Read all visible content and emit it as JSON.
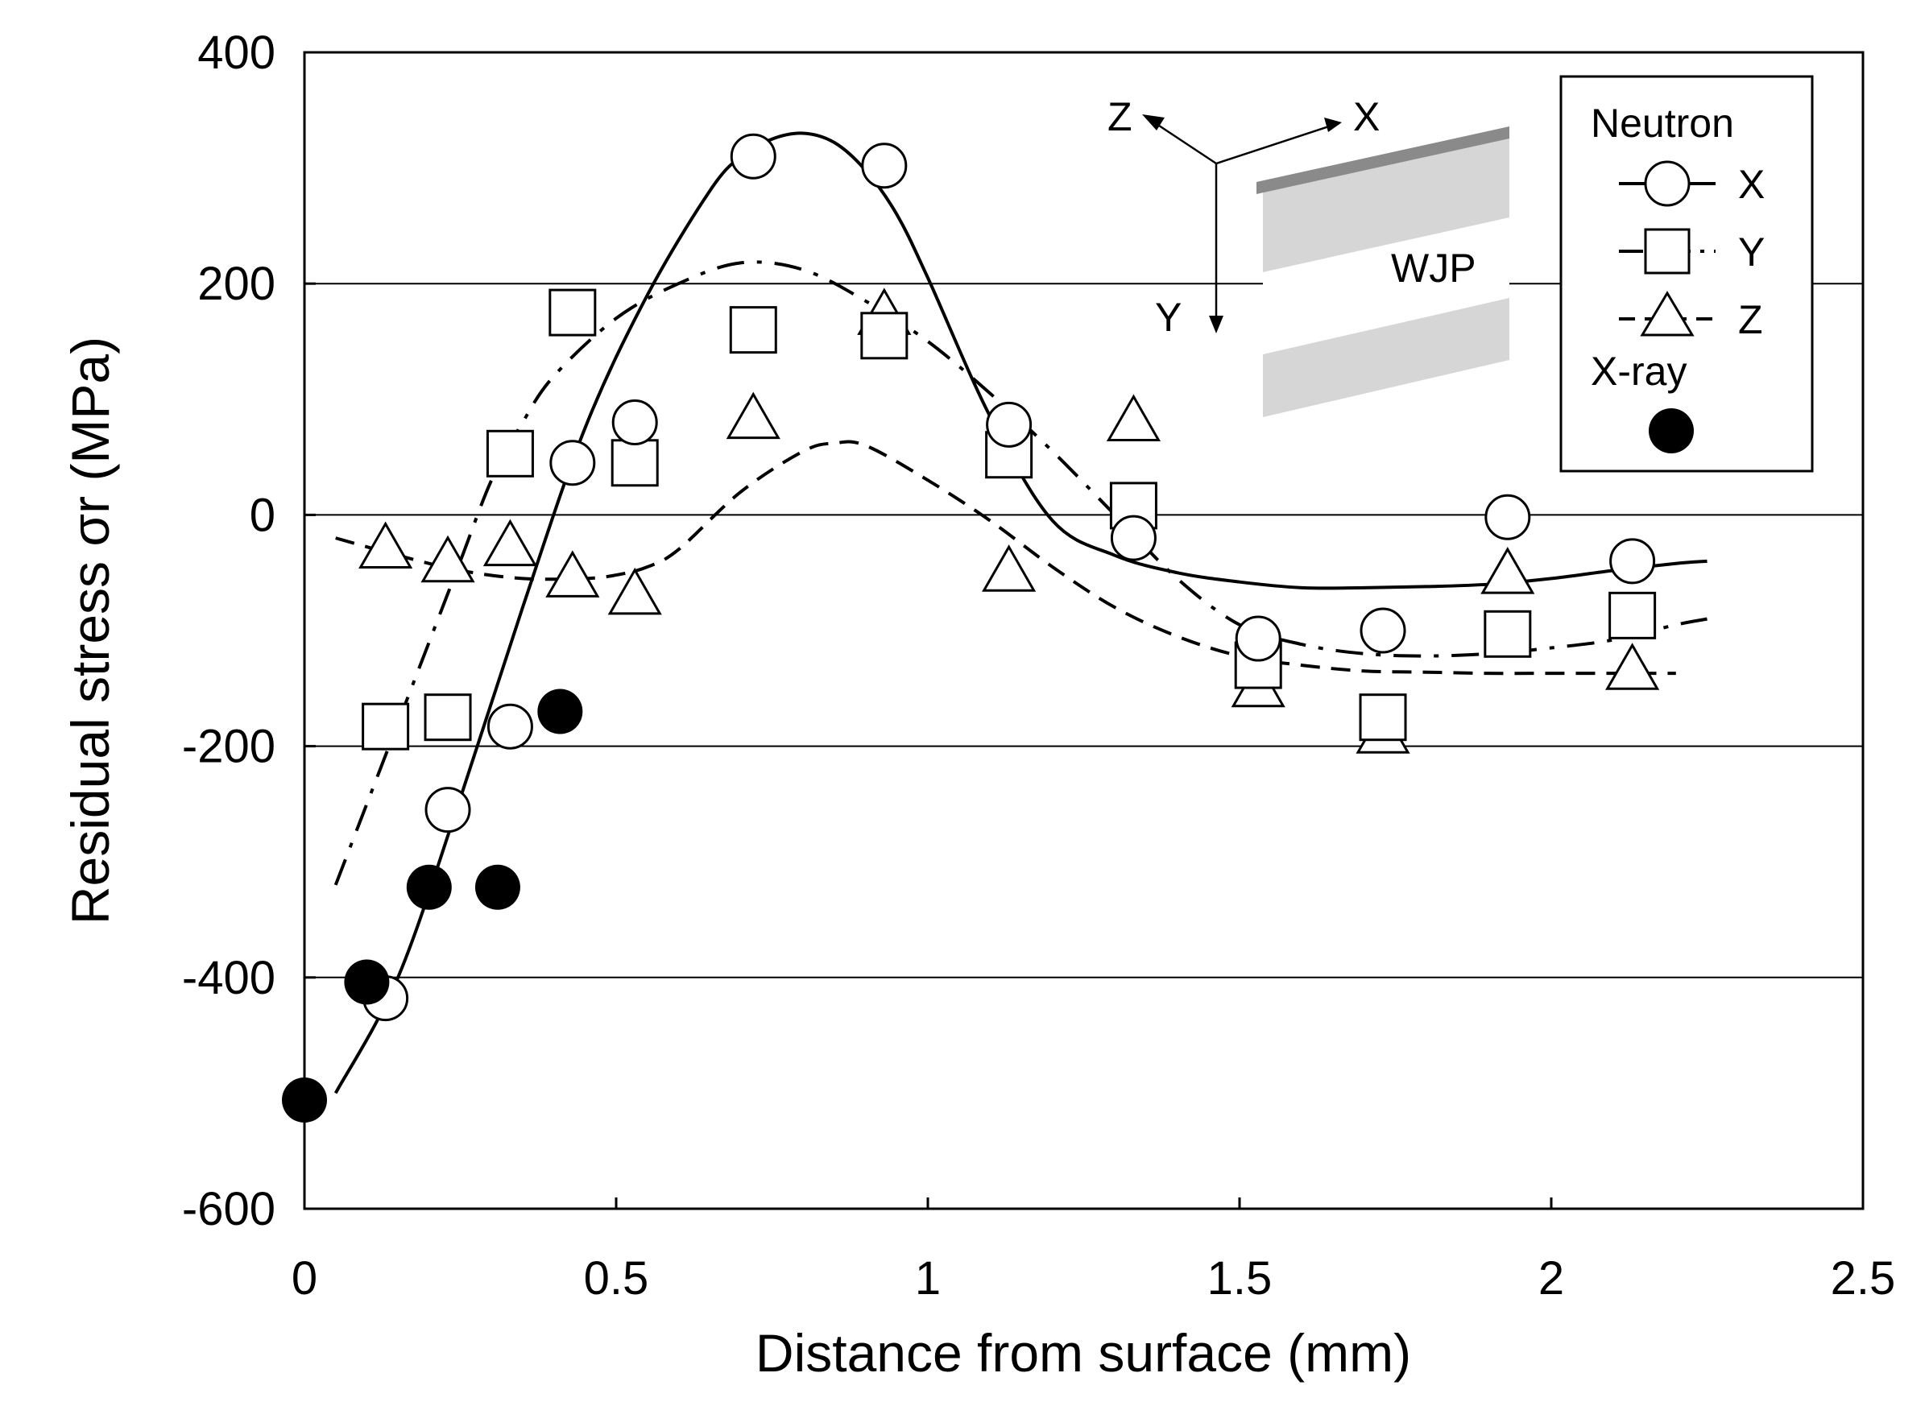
{
  "chart_data": {
    "type": "scatter",
    "title": "",
    "xlabel": "Distance from surface (mm)",
    "ylabel": "Residual stress σr (MPa)",
    "xlim": [
      0,
      2.5
    ],
    "ylim": [
      -600,
      400
    ],
    "x_ticks": [
      0,
      0.5,
      1,
      1.5,
      2,
      2.5
    ],
    "x_tick_labels": [
      "0",
      "0.5",
      "1",
      "1.5",
      "2",
      "2.5"
    ],
    "y_ticks": [
      400,
      200,
      0,
      -200,
      -400,
      -600
    ],
    "y_tick_labels": [
      "400",
      "200",
      "0",
      "-200",
      "-400",
      "-600"
    ],
    "gridlines_y": [
      200,
      0,
      -200,
      -400
    ],
    "series": [
      {
        "name": "X",
        "group": "Neutron",
        "marker": "circle-open",
        "x": [
          0.13,
          0.23,
          0.33,
          0.43,
          0.53,
          0.72,
          0.93,
          1.13,
          1.33,
          1.53,
          1.73,
          1.93,
          2.13
        ],
        "y": [
          -418,
          -255,
          -183,
          45,
          80,
          310,
          302,
          78,
          -20,
          -107,
          -100,
          -2,
          -40
        ]
      },
      {
        "name": "Y",
        "group": "Neutron",
        "marker": "square-open",
        "x": [
          0.13,
          0.23,
          0.33,
          0.43,
          0.53,
          0.72,
          0.93,
          1.13,
          1.33,
          1.53,
          1.73,
          1.93,
          2.13
        ],
        "y": [
          -183,
          -175,
          53,
          175,
          45,
          160,
          155,
          52,
          8,
          -130,
          -175,
          -103,
          -87
        ]
      },
      {
        "name": "Z",
        "group": "Neutron",
        "marker": "triangle-open",
        "x": [
          0.13,
          0.23,
          0.33,
          0.43,
          0.53,
          0.72,
          0.93,
          1.13,
          1.33,
          1.53,
          1.73,
          1.93,
          2.13
        ],
        "y": [
          -30,
          -42,
          -28,
          -55,
          -70,
          82,
          172,
          -50,
          80,
          -150,
          -190,
          -52,
          -135
        ]
      },
      {
        "name": "X-ray",
        "marker": "circle-filled",
        "x": [
          0.0,
          0.1,
          0.2,
          0.31,
          0.41
        ],
        "y": [
          -506,
          -404,
          -322,
          -322,
          -170
        ]
      }
    ],
    "fit_curves": [
      {
        "name": "X fit",
        "style": "solid",
        "x": [
          0.05,
          0.15,
          0.25,
          0.35,
          0.45,
          0.55,
          0.65,
          0.7,
          0.75,
          0.8,
          0.85,
          0.9,
          0.95,
          1.0,
          1.1,
          1.2,
          1.3,
          1.4,
          1.5,
          1.6,
          1.7,
          1.8,
          1.9,
          2.0,
          2.1,
          2.2,
          2.25
        ],
        "y": [
          -500,
          -400,
          -245,
          -80,
          75,
          190,
          280,
          310,
          325,
          330,
          322,
          298,
          260,
          205,
          85,
          -5,
          -35,
          -50,
          -58,
          -63,
          -63,
          -62,
          -60,
          -55,
          -48,
          -42,
          -40
        ]
      },
      {
        "name": "Y fit",
        "style": "dashdot",
        "x": [
          0.05,
          0.1,
          0.15,
          0.2,
          0.25,
          0.3,
          0.35,
          0.4,
          0.5,
          0.6,
          0.7,
          0.8,
          0.9,
          1.0,
          1.1,
          1.2,
          1.3,
          1.4,
          1.5,
          1.6,
          1.7,
          1.8,
          1.9,
          2.0,
          2.1,
          2.2,
          2.25
        ],
        "y": [
          -320,
          -250,
          -180,
          -110,
          -40,
          30,
          80,
          120,
          170,
          200,
          218,
          212,
          185,
          150,
          105,
          55,
          0,
          -55,
          -95,
          -112,
          -120,
          -122,
          -120,
          -115,
          -108,
          -95,
          -90
        ]
      },
      {
        "name": "Z fit",
        "style": "dashed",
        "x": [
          0.05,
          0.15,
          0.25,
          0.35,
          0.45,
          0.5,
          0.55,
          0.6,
          0.7,
          0.8,
          0.85,
          0.9,
          1.0,
          1.1,
          1.2,
          1.3,
          1.4,
          1.5,
          1.6,
          1.7,
          1.8,
          1.9,
          2.0,
          2.1,
          2.2
        ],
        "y": [
          -20,
          -35,
          -48,
          -55,
          -55,
          -52,
          -45,
          -30,
          20,
          55,
          62,
          60,
          30,
          -5,
          -45,
          -80,
          -105,
          -122,
          -130,
          -135,
          -136,
          -137,
          -137,
          -137,
          -137
        ]
      }
    ],
    "legend": {
      "position": "top-right",
      "group_label": "Neutron",
      "entries": [
        "X",
        "Y",
        "Z"
      ],
      "xray_label": "X-ray"
    },
    "annotations": {
      "axis_z": "Z",
      "axis_x": "X",
      "axis_y": "Y",
      "specimen_label": "WJP"
    }
  }
}
